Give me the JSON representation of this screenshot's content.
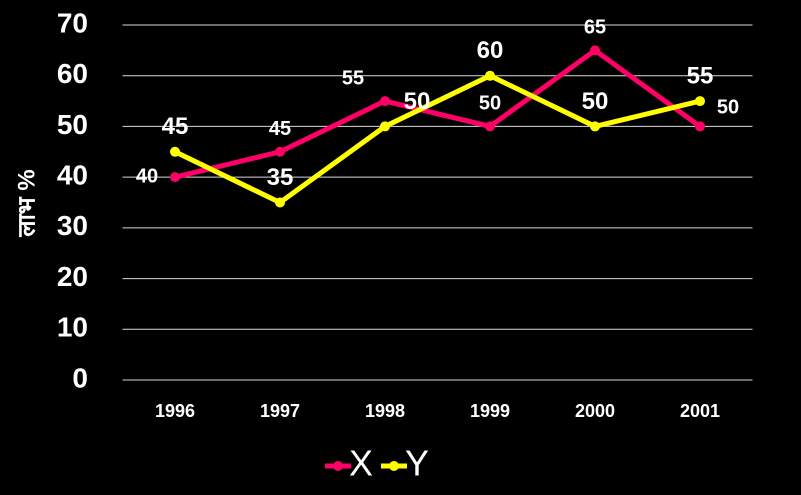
{
  "chart_data": {
    "type": "line",
    "y_label": "लाभ %",
    "categories": [
      "1996",
      "1997",
      "1998",
      "1999",
      "2000",
      "2001"
    ],
    "series": [
      {
        "name": "X",
        "color": "#ff0066",
        "values": [
          40,
          45,
          55,
          50,
          65,
          50
        ]
      },
      {
        "name": "Y",
        "color": "#ffff00",
        "values": [
          45,
          35,
          50,
          60,
          50,
          55
        ]
      }
    ],
    "ylim": [
      0,
      70
    ],
    "yticks": [
      0,
      10,
      20,
      30,
      40,
      50,
      60,
      70
    ],
    "grid": true,
    "legend": "bottom"
  }
}
